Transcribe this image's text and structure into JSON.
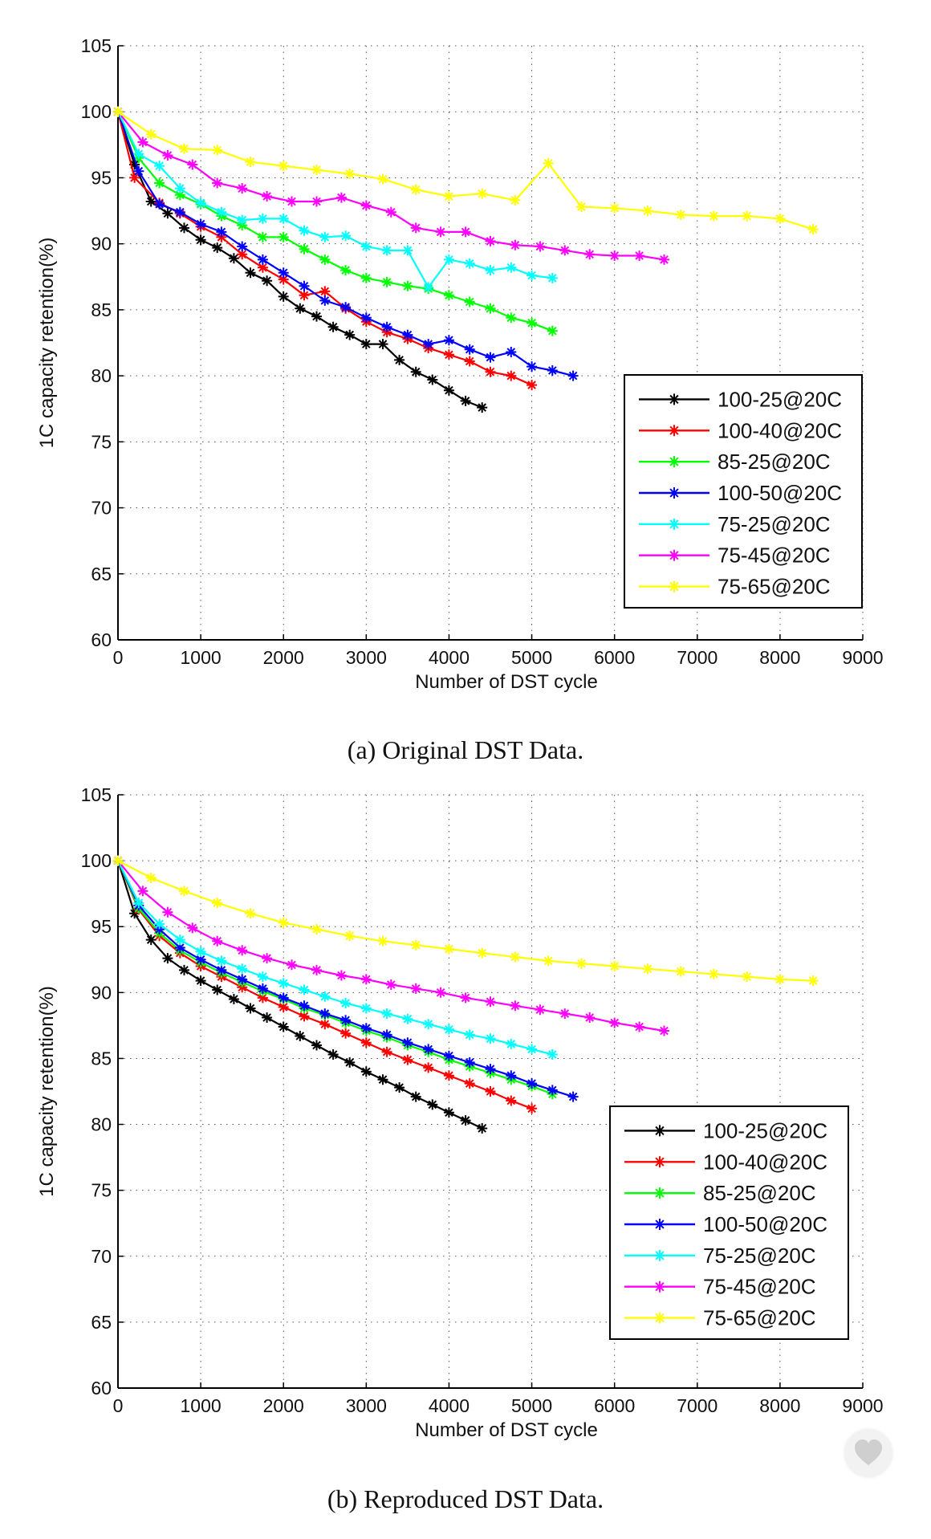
{
  "colors": {
    "100-25@20C": "#000000",
    "100-40@20C": "#ff0000",
    "85-25@20C": "#00ff00",
    "100-50@20C": "#0000ff",
    "75-25@20C": "#00ffff",
    "75-45@20C": "#ff00ff",
    "75-65@20C": "#ffff00"
  },
  "chart_data": [
    {
      "type": "line",
      "caption": "(a) Original DST Data.",
      "xlabel": "Number of DST cycle",
      "ylabel": "1C capacity retention(%)",
      "xlim": [
        0,
        9000
      ],
      "ylim": [
        60,
        105
      ],
      "xticks": [
        "0",
        "1000",
        "2000",
        "3000",
        "4000",
        "5000",
        "6000",
        "7000",
        "8000",
        "9000"
      ],
      "yticks": [
        "60",
        "65",
        "70",
        "75",
        "80",
        "85",
        "90",
        "95",
        "100",
        "105"
      ],
      "grid": true,
      "legend_position": "bottom-right",
      "series": [
        {
          "name": "100-25@20C",
          "x": [
            0,
            200,
            400,
            600,
            800,
            1000,
            1200,
            1400,
            1600,
            1800,
            2000,
            2200,
            2400,
            2600,
            2800,
            3000,
            3200,
            3400,
            3600,
            3800,
            4000,
            4200,
            4400
          ],
          "y": [
            100,
            96,
            93.2,
            92.3,
            91.2,
            90.3,
            89.7,
            88.9,
            87.8,
            87.2,
            86.0,
            85.1,
            84.5,
            83.7,
            83.1,
            82.4,
            82.4,
            81.2,
            80.3,
            79.7,
            78.9,
            78.1,
            77.6
          ]
        },
        {
          "name": "100-40@20C",
          "x": [
            0,
            200,
            500,
            750,
            1000,
            1250,
            1500,
            1750,
            2000,
            2250,
            2500,
            2750,
            3000,
            3250,
            3500,
            3750,
            4000,
            4250,
            4500,
            4750,
            5000
          ],
          "y": [
            100,
            95.0,
            93.1,
            92.3,
            91.3,
            90.5,
            89.2,
            88.2,
            87.3,
            86.1,
            86.4,
            85.1,
            84.1,
            83.3,
            82.8,
            82.1,
            81.6,
            81.1,
            80.3,
            80.0,
            79.3
          ]
        },
        {
          "name": "85-25@20C",
          "x": [
            0,
            250,
            500,
            750,
            1000,
            1250,
            1500,
            1750,
            2000,
            2250,
            2500,
            2750,
            3000,
            3250,
            3500,
            3750,
            4000,
            4250,
            4500,
            4750,
            5000,
            5250
          ],
          "y": [
            100,
            96.5,
            94.6,
            93.7,
            93.0,
            92.1,
            91.4,
            90.5,
            90.5,
            89.6,
            88.8,
            88.0,
            87.4,
            87.1,
            86.8,
            86.6,
            86.1,
            85.6,
            85.1,
            84.4,
            84.0,
            83.4
          ]
        },
        {
          "name": "100-50@20C",
          "x": [
            0,
            250,
            500,
            750,
            1000,
            1250,
            1500,
            1750,
            2000,
            2250,
            2500,
            2750,
            3000,
            3250,
            3500,
            3750,
            4000,
            4250,
            4500,
            4750,
            5000,
            5250,
            5500
          ],
          "y": [
            100,
            95.5,
            93.0,
            92.4,
            91.5,
            90.9,
            89.8,
            88.8,
            87.8,
            86.8,
            85.7,
            85.2,
            84.4,
            83.7,
            83.1,
            82.4,
            82.7,
            82.0,
            81.4,
            81.8,
            80.7,
            80.4,
            80.0
          ]
        },
        {
          "name": "75-25@20C",
          "x": [
            0,
            250,
            500,
            750,
            1000,
            1250,
            1500,
            1750,
            2000,
            2250,
            2500,
            2750,
            3000,
            3250,
            3500,
            3750,
            4000,
            4250,
            4500,
            4750,
            5000,
            5250
          ],
          "y": [
            100,
            96.8,
            95.9,
            94.2,
            93.1,
            92.4,
            91.8,
            91.9,
            91.9,
            91.0,
            90.5,
            90.6,
            89.8,
            89.5,
            89.5,
            86.7,
            88.8,
            88.5,
            88.0,
            88.2,
            87.6,
            87.4
          ]
        },
        {
          "name": "75-45@20C",
          "x": [
            0,
            300,
            600,
            900,
            1200,
            1500,
            1800,
            2100,
            2400,
            2700,
            3000,
            3300,
            3600,
            3900,
            4200,
            4500,
            4800,
            5100,
            5400,
            5700,
            6000,
            6300,
            6600
          ],
          "y": [
            100,
            97.7,
            96.7,
            96.0,
            94.6,
            94.2,
            93.6,
            93.2,
            93.2,
            93.5,
            92.9,
            92.4,
            91.2,
            90.9,
            90.9,
            90.2,
            89.9,
            89.8,
            89.5,
            89.2,
            89.1,
            89.1,
            88.8
          ]
        },
        {
          "name": "75-65@20C",
          "x": [
            0,
            400,
            800,
            1200,
            1600,
            2000,
            2400,
            2800,
            3200,
            3600,
            4000,
            4400,
            4800,
            5200,
            5600,
            6000,
            6400,
            6800,
            7200,
            7600,
            8000,
            8400
          ],
          "y": [
            100,
            98.3,
            97.2,
            97.1,
            96.2,
            95.9,
            95.6,
            95.3,
            94.9,
            94.1,
            93.6,
            93.8,
            93.3,
            96.1,
            92.8,
            92.7,
            92.5,
            92.2,
            92.1,
            92.1,
            91.9,
            91.1
          ]
        }
      ]
    },
    {
      "type": "line",
      "caption": "(b) Reproduced DST Data.",
      "xlabel": "Number of DST cycle",
      "ylabel": "1C capacity retention(%)",
      "xlim": [
        0,
        9000
      ],
      "ylim": [
        60,
        105
      ],
      "xticks": [
        "0",
        "1000",
        "2000",
        "3000",
        "4000",
        "5000",
        "6000",
        "7000",
        "8000",
        "9000"
      ],
      "yticks": [
        "60",
        "65",
        "70",
        "75",
        "80",
        "85",
        "90",
        "95",
        "100",
        "105"
      ],
      "grid": true,
      "legend_position": "bottom-right",
      "series": [
        {
          "name": "100-25@20C",
          "x": [
            0,
            200,
            400,
            600,
            800,
            1000,
            1200,
            1400,
            1600,
            1800,
            2000,
            2200,
            2400,
            2600,
            2800,
            3000,
            3200,
            3400,
            3600,
            3800,
            4000,
            4200,
            4400
          ],
          "y": [
            100,
            96.0,
            94.0,
            92.6,
            91.7,
            90.9,
            90.2,
            89.5,
            88.8,
            88.1,
            87.4,
            86.7,
            86.0,
            85.3,
            84.7,
            84.0,
            83.4,
            82.8,
            82.1,
            81.5,
            80.9,
            80.3,
            79.7
          ]
        },
        {
          "name": "100-40@20C",
          "x": [
            0,
            250,
            500,
            750,
            1000,
            1250,
            1500,
            1750,
            2000,
            2250,
            2500,
            2750,
            3000,
            3250,
            3500,
            3750,
            4000,
            4250,
            4500,
            4750,
            5000
          ],
          "y": [
            100,
            96.3,
            94.3,
            93.0,
            92.0,
            91.2,
            90.4,
            89.6,
            88.9,
            88.2,
            87.6,
            86.9,
            86.2,
            85.5,
            84.9,
            84.3,
            83.7,
            83.1,
            82.5,
            81.8,
            81.2
          ]
        },
        {
          "name": "85-25@20C",
          "x": [
            0,
            250,
            500,
            750,
            1000,
            1250,
            1500,
            1750,
            2000,
            2250,
            2500,
            2750,
            3000,
            3250,
            3500,
            3750,
            4000,
            4250,
            4500,
            4750,
            5000,
            5250
          ],
          "y": [
            100,
            96.4,
            94.5,
            93.2,
            92.3,
            91.5,
            90.8,
            90.1,
            89.5,
            88.8,
            88.3,
            87.7,
            87.1,
            86.6,
            86.0,
            85.5,
            84.9,
            84.4,
            83.9,
            83.4,
            82.9,
            82.3
          ]
        },
        {
          "name": "100-50@20C",
          "x": [
            0,
            250,
            500,
            750,
            1000,
            1250,
            1500,
            1750,
            2000,
            2250,
            2500,
            2750,
            3000,
            3250,
            3500,
            3750,
            4000,
            4250,
            4500,
            4750,
            5000,
            5250,
            5500
          ],
          "y": [
            100,
            96.6,
            94.8,
            93.4,
            92.5,
            91.7,
            91.0,
            90.3,
            89.6,
            89.0,
            88.4,
            87.9,
            87.3,
            86.8,
            86.2,
            85.7,
            85.2,
            84.7,
            84.2,
            83.7,
            83.1,
            82.6,
            82.1
          ]
        },
        {
          "name": "75-25@20C",
          "x": [
            0,
            250,
            500,
            750,
            1000,
            1250,
            1500,
            1750,
            2000,
            2250,
            2500,
            2750,
            3000,
            3250,
            3500,
            3750,
            4000,
            4250,
            4500,
            4750,
            5000,
            5250
          ],
          "y": [
            100,
            96.8,
            95.2,
            94.0,
            93.1,
            92.4,
            91.8,
            91.2,
            90.7,
            90.2,
            89.7,
            89.2,
            88.8,
            88.4,
            88.0,
            87.6,
            87.2,
            86.8,
            86.5,
            86.1,
            85.7,
            85.3
          ]
        },
        {
          "name": "75-45@20C",
          "x": [
            0,
            300,
            600,
            900,
            1200,
            1500,
            1800,
            2100,
            2400,
            2700,
            3000,
            3300,
            3600,
            3900,
            4200,
            4500,
            4800,
            5100,
            5400,
            5700,
            6000,
            6300,
            6600
          ],
          "y": [
            100,
            97.7,
            96.1,
            94.9,
            93.9,
            93.2,
            92.6,
            92.1,
            91.7,
            91.3,
            91.0,
            90.6,
            90.3,
            90.0,
            89.6,
            89.3,
            89.0,
            88.7,
            88.4,
            88.1,
            87.7,
            87.4,
            87.1
          ]
        },
        {
          "name": "75-65@20C",
          "x": [
            0,
            400,
            800,
            1200,
            1600,
            2000,
            2400,
            2800,
            3200,
            3600,
            4000,
            4400,
            4800,
            5200,
            5600,
            6000,
            6400,
            6800,
            7200,
            7600,
            8000,
            8400
          ],
          "y": [
            100,
            98.7,
            97.7,
            96.8,
            96.0,
            95.3,
            94.8,
            94.3,
            93.9,
            93.6,
            93.3,
            93.0,
            92.7,
            92.4,
            92.2,
            92.0,
            91.8,
            91.6,
            91.4,
            91.2,
            91.0,
            90.9
          ]
        }
      ]
    }
  ]
}
